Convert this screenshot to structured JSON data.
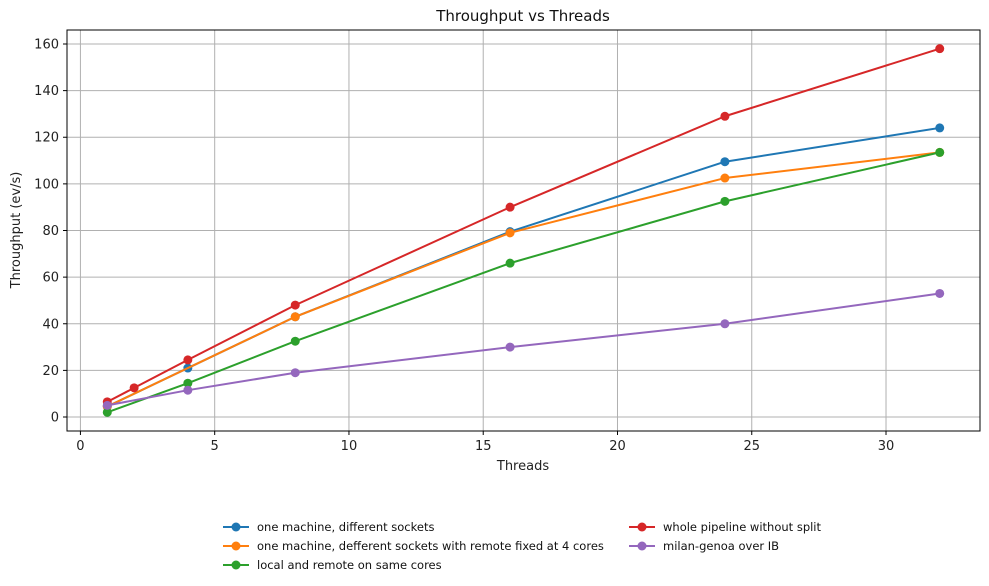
{
  "chart_data": {
    "type": "line",
    "title": "Throughput vs Threads",
    "xlabel": "Threads",
    "ylabel": "Throughput (ev/s)",
    "xlim": [
      -0.5,
      33.5
    ],
    "ylim": [
      -6,
      166
    ],
    "xticks": [
      0,
      5,
      10,
      15,
      20,
      25,
      30
    ],
    "yticks": [
      0,
      20,
      40,
      60,
      80,
      100,
      120,
      140,
      160
    ],
    "grid": true,
    "legend_position": "bottom-center",
    "series": [
      {
        "name": "one machine, different sockets",
        "color": "#1f77b4",
        "x": [
          1,
          4,
          8,
          16,
          24,
          32
        ],
        "y": [
          4.5,
          21,
          43,
          79.5,
          109.5,
          124
        ]
      },
      {
        "name": "one machine, defferent sockets with remote fixed at 4 cores",
        "color": "#ff7f0e",
        "x": [
          1,
          8,
          16,
          24,
          32
        ],
        "y": [
          4.5,
          43,
          79,
          102.5,
          113.5
        ]
      },
      {
        "name": "local and remote on same cores",
        "color": "#2ca02c",
        "x": [
          1,
          4,
          8,
          16,
          24,
          32
        ],
        "y": [
          2,
          14.5,
          32.5,
          66,
          92.5,
          113.5
        ]
      },
      {
        "name": "whole pipeline without split",
        "color": "#d62728",
        "x": [
          1,
          2,
          4,
          8,
          16,
          24,
          32
        ],
        "y": [
          6.5,
          12.5,
          24.5,
          48,
          90,
          129,
          158
        ]
      },
      {
        "name": "milan-genoa over IB",
        "color": "#9467bd",
        "x": [
          1,
          4,
          8,
          16,
          24,
          32
        ],
        "y": [
          5,
          11.5,
          19,
          30,
          40,
          53
        ]
      }
    ]
  }
}
